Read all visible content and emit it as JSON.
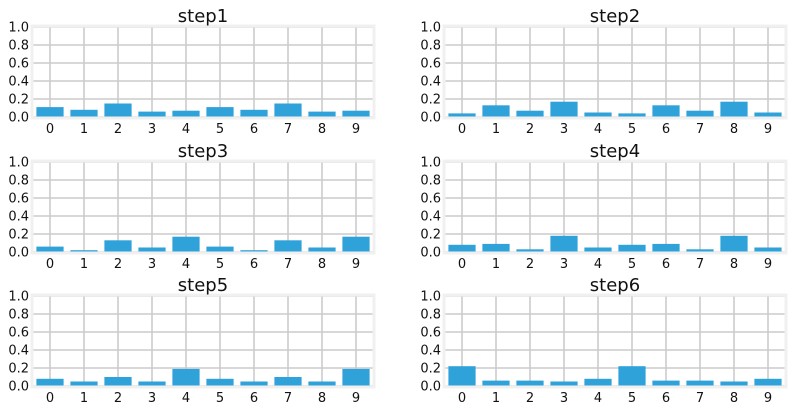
{
  "chart_data": [
    {
      "type": "bar",
      "title": "step1",
      "categories": [
        "0",
        "1",
        "2",
        "3",
        "4",
        "5",
        "6",
        "7",
        "8",
        "9"
      ],
      "values": [
        0.11,
        0.08,
        0.15,
        0.06,
        0.07,
        0.11,
        0.08,
        0.15,
        0.06,
        0.07
      ],
      "ylim": [
        0,
        1.0
      ],
      "yticks": [
        "0.0",
        "0.2",
        "0.4",
        "0.6",
        "0.8",
        "1.0"
      ],
      "grid": true,
      "color": "#30a2da"
    },
    {
      "type": "bar",
      "title": "step2",
      "categories": [
        "0",
        "1",
        "2",
        "3",
        "4",
        "5",
        "6",
        "7",
        "8",
        "9"
      ],
      "values": [
        0.04,
        0.13,
        0.07,
        0.17,
        0.05,
        0.04,
        0.13,
        0.07,
        0.17,
        0.05
      ],
      "ylim": [
        0,
        1.0
      ],
      "yticks": [
        "0.0",
        "0.2",
        "0.4",
        "0.6",
        "0.8",
        "1.0"
      ],
      "grid": true,
      "color": "#30a2da"
    },
    {
      "type": "bar",
      "title": "step3",
      "categories": [
        "0",
        "1",
        "2",
        "3",
        "4",
        "5",
        "6",
        "7",
        "8",
        "9"
      ],
      "values": [
        0.06,
        0.02,
        0.13,
        0.05,
        0.17,
        0.06,
        0.02,
        0.13,
        0.05,
        0.17
      ],
      "ylim": [
        0,
        1.0
      ],
      "yticks": [
        "0.0",
        "0.2",
        "0.4",
        "0.6",
        "0.8",
        "1.0"
      ],
      "grid": true,
      "color": "#30a2da"
    },
    {
      "type": "bar",
      "title": "step4",
      "categories": [
        "0",
        "1",
        "2",
        "3",
        "4",
        "5",
        "6",
        "7",
        "8",
        "9"
      ],
      "values": [
        0.08,
        0.09,
        0.03,
        0.18,
        0.05,
        0.08,
        0.09,
        0.03,
        0.18,
        0.05
      ],
      "ylim": [
        0,
        1.0
      ],
      "yticks": [
        "0.0",
        "0.2",
        "0.4",
        "0.6",
        "0.8",
        "1.0"
      ],
      "grid": true,
      "color": "#30a2da"
    },
    {
      "type": "bar",
      "title": "step5",
      "categories": [
        "0",
        "1",
        "2",
        "3",
        "4",
        "5",
        "6",
        "7",
        "8",
        "9"
      ],
      "values": [
        0.08,
        0.05,
        0.1,
        0.05,
        0.19,
        0.08,
        0.05,
        0.1,
        0.05,
        0.19
      ],
      "ylim": [
        0,
        1.0
      ],
      "yticks": [
        "0.0",
        "0.2",
        "0.4",
        "0.6",
        "0.8",
        "1.0"
      ],
      "grid": true,
      "color": "#30a2da"
    },
    {
      "type": "bar",
      "title": "step6",
      "categories": [
        "0",
        "1",
        "2",
        "3",
        "4",
        "5",
        "6",
        "7",
        "8",
        "9"
      ],
      "values": [
        0.22,
        0.06,
        0.06,
        0.05,
        0.08,
        0.22,
        0.06,
        0.06,
        0.05,
        0.08
      ],
      "ylim": [
        0,
        1.0
      ],
      "yticks": [
        "0.0",
        "0.2",
        "0.4",
        "0.6",
        "0.8",
        "1.0"
      ],
      "grid": true,
      "color": "#30a2da"
    }
  ]
}
